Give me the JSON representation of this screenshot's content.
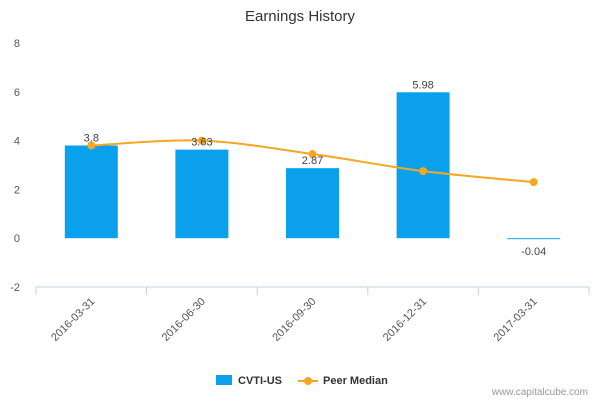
{
  "chart_data": {
    "type": "bar",
    "title": "Earnings History",
    "categories": [
      "2016-03-31",
      "2016-06-30",
      "2016-09-30",
      "2016-12-31",
      "2017-03-31"
    ],
    "series": [
      {
        "name": "CVTI-US",
        "kind": "bar",
        "color": "#0aa0ec",
        "values": [
          3.8,
          3.63,
          2.87,
          5.98,
          -0.04
        ],
        "labels": [
          "3.8",
          "3.63",
          "2.87",
          "5.98",
          "-0.04"
        ]
      },
      {
        "name": "Peer Median",
        "kind": "line",
        "color": "#f5a623",
        "values": [
          3.8,
          4.0,
          3.45,
          2.75,
          2.3
        ]
      }
    ],
    "ylim": [
      -2,
      8
    ],
    "yticks": [
      "-2",
      "0",
      "2",
      "4",
      "6",
      "8"
    ],
    "xlabel": "",
    "ylabel": "",
    "grid": false,
    "legend_position": "bottom-center"
  },
  "watermark": "www.capitalcube.com"
}
